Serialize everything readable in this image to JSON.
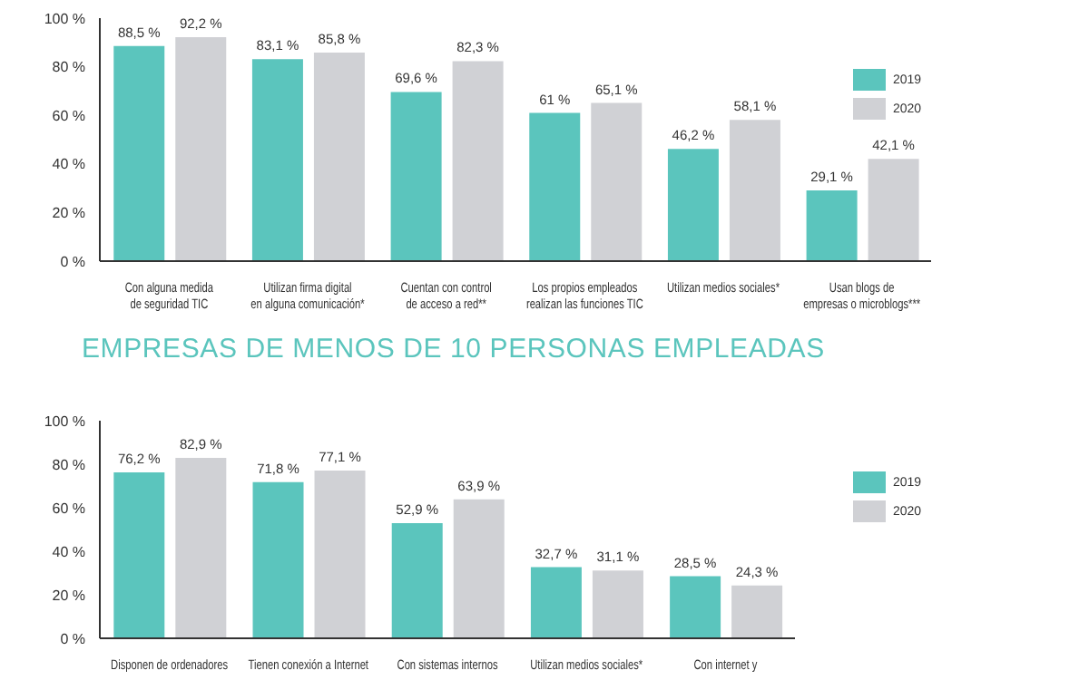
{
  "chart_data": [
    {
      "type": "bar",
      "categories": [
        "Con alguna medida\nde seguridad TIC",
        "Utilizan firma digital\nen alguna comunicación*",
        "Cuentan con control\nde acceso a red**",
        "Los propios empleados\nrealizan las funciones TIC",
        "Utilizan medios sociales*",
        "Usan blogs de\nempresas o microblogs***"
      ],
      "series": [
        {
          "name": "2019",
          "color": "#5bc5bd",
          "values": [
            88.5,
            83.1,
            69.6,
            61,
            46.2,
            29.1
          ],
          "value_labels": [
            "88,5 %",
            "83,1 %",
            "69,6 %",
            "61 %",
            "46,2 %",
            "29,1 %"
          ]
        },
        {
          "name": "2020",
          "color": "#d0d1d5",
          "values": [
            92.2,
            85.8,
            82.3,
            65.1,
            58.1,
            42.1
          ],
          "value_labels": [
            "92,2 %",
            "85,8 %",
            "82,3 %",
            "65,1 %",
            "58,1 %",
            "42,1 %"
          ]
        }
      ],
      "ylim": [
        0,
        100
      ],
      "yticks": [
        {
          "value": 0,
          "label": "0 %"
        },
        {
          "value": 20,
          "label": "20 %"
        },
        {
          "value": 40,
          "label": "40 %"
        },
        {
          "value": 60,
          "label": "60 %"
        },
        {
          "value": 80,
          "label": "80 %"
        },
        {
          "value": 100,
          "label": "100 %"
        }
      ],
      "legend": "top right",
      "grid": false
    },
    {
      "type": "bar",
      "title": "EMPRESAS DE MENOS DE 10 PERSONAS EMPLEADAS",
      "categories": [
        "Disponen de ordenadores",
        "Tienen conexión a Internet",
        "Con sistemas internos",
        "Utilizan medios sociales*",
        "Con internet y"
      ],
      "series": [
        {
          "name": "2019",
          "color": "#5bc5bd",
          "values": [
            76.2,
            71.8,
            52.9,
            32.7,
            28.5
          ],
          "value_labels": [
            "76,2 %",
            "71,8 %",
            "52,9 %",
            "32,7 %",
            "28,5 %"
          ]
        },
        {
          "name": "2020",
          "color": "#d0d1d5",
          "values": [
            82.9,
            77.1,
            63.9,
            31.1,
            24.3
          ],
          "value_labels": [
            "82,9 %",
            "77,1 %",
            "63,9 %",
            "31,1 %",
            "24,3 %"
          ]
        }
      ],
      "ylim": [
        0,
        100
      ],
      "yticks": [
        {
          "value": 0,
          "label": "0 %"
        },
        {
          "value": 20,
          "label": "20 %"
        },
        {
          "value": 40,
          "label": "40 %"
        },
        {
          "value": 60,
          "label": "60 %"
        },
        {
          "value": 80,
          "label": "80 %"
        },
        {
          "value": 100,
          "label": "100 %"
        }
      ],
      "legend": "top right",
      "grid": false
    }
  ]
}
